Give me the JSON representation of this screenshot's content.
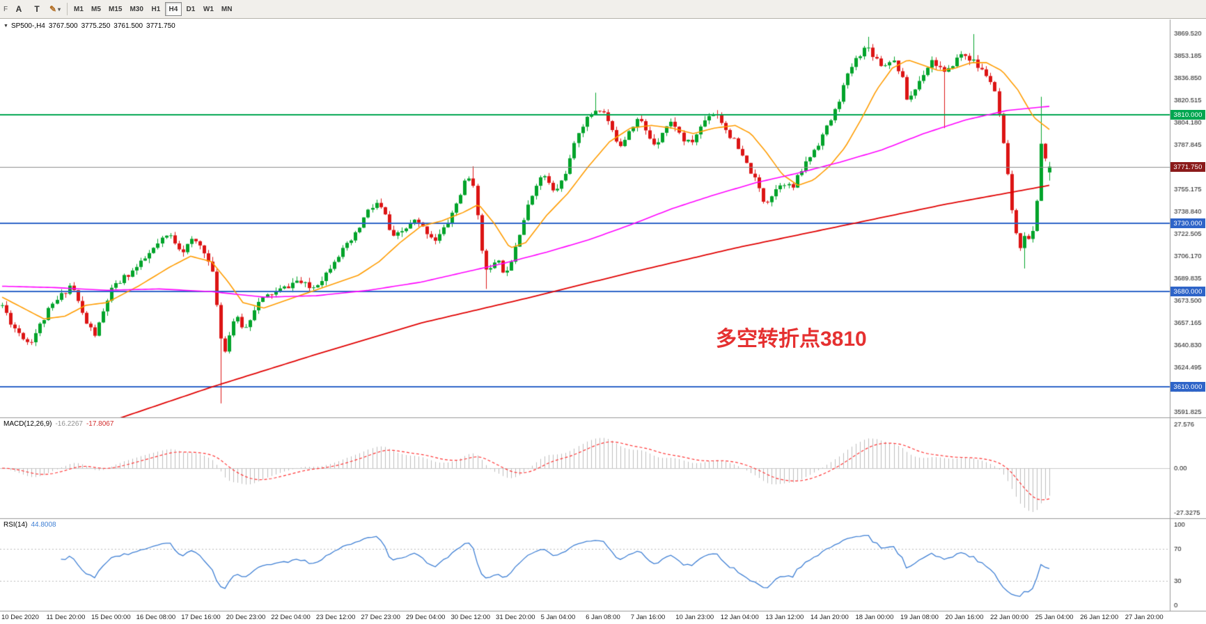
{
  "toolbar": {
    "handle_label": "F",
    "tools": [
      {
        "id": "text-tool",
        "label": "A",
        "has_dropdown": false
      },
      {
        "id": "label-tool",
        "label": "T",
        "has_dropdown": false
      },
      {
        "id": "draw-tool",
        "label": "✎",
        "has_dropdown": true
      }
    ],
    "timeframes": [
      {
        "label": "M1",
        "active": false
      },
      {
        "label": "M5",
        "active": false
      },
      {
        "label": "M15",
        "active": false
      },
      {
        "label": "M30",
        "active": false
      },
      {
        "label": "H1",
        "active": false
      },
      {
        "label": "H4",
        "active": true
      },
      {
        "label": "D1",
        "active": false
      },
      {
        "label": "W1",
        "active": false
      },
      {
        "label": "MN",
        "active": false
      }
    ]
  },
  "header": {
    "marker": "▼",
    "symbol": "SP500-,H4",
    "open": "3767.500",
    "high": "3775.250",
    "low": "3761.500",
    "close": "3771.750"
  },
  "annotation": {
    "text": "多空转折点3810"
  },
  "macd_panel": {
    "name": "MACD(12,26,9)",
    "value_main": "-16.2267",
    "value_signal": "-17.8067",
    "scale_top": "27.576",
    "scale_zero": "0.00",
    "scale_bottom": "-27.3275"
  },
  "rsi_panel": {
    "name": "RSI(14)",
    "value": "44.8008",
    "scale": [
      "100",
      "70",
      "30",
      "0"
    ]
  },
  "time_axis": {
    "labels": [
      "10 Dec 2020",
      "11 Dec 20:00",
      "15 Dec 00:00",
      "16 Dec 08:00",
      "17 Dec 16:00",
      "20 Dec 23:00",
      "22 Dec 04:00",
      "23 Dec 12:00",
      "27 Dec 23:00",
      "29 Dec 04:00",
      "30 Dec 12:00",
      "31 Dec 20:00",
      "5 Jan 04:00",
      "6 Jan 08:00",
      "7 Jan 16:00",
      "10 Jan 23:00",
      "12 Jan 04:00",
      "13 Jan 12:00",
      "14 Jan 20:00",
      "18 Jan 00:00",
      "19 Jan 08:00",
      "20 Jan 16:00",
      "22 Jan 00:00",
      "25 Jan 04:00",
      "26 Jan 12:00",
      "27 Jan 20:00"
    ]
  },
  "chart_data": {
    "type": "candlestick",
    "symbol": "SP500-",
    "timeframe": "H4",
    "last_candle": {
      "open": 3767.5,
      "high": 3775.25,
      "low": 3761.5,
      "close": 3771.75
    },
    "price_axis": {
      "ticks": [
        3869.52,
        3853.185,
        3836.85,
        3820.515,
        3804.18,
        3787.845,
        3771.51,
        3755.175,
        3738.84,
        3722.505,
        3706.17,
        3689.835,
        3673.5,
        3657.165,
        3640.83,
        3624.495,
        3608.16,
        3591.825
      ]
    },
    "candles": {
      "count": 250,
      "seed": 11,
      "noise": 5,
      "anchors": [
        [
          0.0,
          3670
        ],
        [
          0.01,
          3655
        ],
        [
          0.026,
          3642
        ],
        [
          0.046,
          3668
        ],
        [
          0.066,
          3686
        ],
        [
          0.079,
          3658
        ],
        [
          0.089,
          3648
        ],
        [
          0.103,
          3680
        ],
        [
          0.116,
          3690
        ],
        [
          0.132,
          3700
        ],
        [
          0.149,
          3715
        ],
        [
          0.159,
          3722
        ],
        [
          0.172,
          3710
        ],
        [
          0.182,
          3718
        ],
        [
          0.192,
          3712
        ],
        [
          0.202,
          3690
        ],
        [
          0.209,
          3645
        ],
        [
          0.213,
          3638
        ],
        [
          0.222,
          3662
        ],
        [
          0.232,
          3652
        ],
        [
          0.242,
          3670
        ],
        [
          0.255,
          3678
        ],
        [
          0.268,
          3682
        ],
        [
          0.281,
          3688
        ],
        [
          0.295,
          3682
        ],
        [
          0.308,
          3692
        ],
        [
          0.318,
          3705
        ],
        [
          0.328,
          3712
        ],
        [
          0.338,
          3722
        ],
        [
          0.348,
          3738
        ],
        [
          0.358,
          3745
        ],
        [
          0.366,
          3735
        ],
        [
          0.372,
          3718
        ],
        [
          0.383,
          3725
        ],
        [
          0.394,
          3732
        ],
        [
          0.404,
          3725
        ],
        [
          0.414,
          3718
        ],
        [
          0.424,
          3728
        ],
        [
          0.434,
          3745
        ],
        [
          0.442,
          3760
        ],
        [
          0.449,
          3765
        ],
        [
          0.456,
          3720
        ],
        [
          0.46,
          3700
        ],
        [
          0.467,
          3695
        ],
        [
          0.474,
          3705
        ],
        [
          0.478,
          3692
        ],
        [
          0.485,
          3702
        ],
        [
          0.493,
          3722
        ],
        [
          0.502,
          3742
        ],
        [
          0.51,
          3760
        ],
        [
          0.518,
          3765
        ],
        [
          0.527,
          3752
        ],
        [
          0.535,
          3762
        ],
        [
          0.543,
          3778
        ],
        [
          0.551,
          3800
        ],
        [
          0.56,
          3808
        ],
        [
          0.568,
          3815
        ],
        [
          0.576,
          3810
        ],
        [
          0.583,
          3795
        ],
        [
          0.591,
          3788
        ],
        [
          0.599,
          3800
        ],
        [
          0.608,
          3808
        ],
        [
          0.616,
          3795
        ],
        [
          0.624,
          3788
        ],
        [
          0.632,
          3800
        ],
        [
          0.641,
          3805
        ],
        [
          0.649,
          3792
        ],
        [
          0.657,
          3788
        ],
        [
          0.666,
          3800
        ],
        [
          0.674,
          3810
        ],
        [
          0.682,
          3812
        ],
        [
          0.69,
          3800
        ],
        [
          0.699,
          3790
        ],
        [
          0.707,
          3778
        ],
        [
          0.715,
          3768
        ],
        [
          0.723,
          3755
        ],
        [
          0.728,
          3745
        ],
        [
          0.736,
          3752
        ],
        [
          0.745,
          3762
        ],
        [
          0.754,
          3755
        ],
        [
          0.762,
          3768
        ],
        [
          0.77,
          3778
        ],
        [
          0.778,
          3788
        ],
        [
          0.787,
          3800
        ],
        [
          0.795,
          3812
        ],
        [
          0.803,
          3830
        ],
        [
          0.811,
          3845
        ],
        [
          0.82,
          3856
        ],
        [
          0.826,
          3860
        ],
        [
          0.834,
          3852
        ],
        [
          0.842,
          3845
        ],
        [
          0.849,
          3852
        ],
        [
          0.858,
          3840
        ],
        [
          0.864,
          3820
        ],
        [
          0.871,
          3828
        ],
        [
          0.879,
          3840
        ],
        [
          0.887,
          3850
        ],
        [
          0.895,
          3845
        ],
        [
          0.901,
          3838
        ],
        [
          0.908,
          3848
        ],
        [
          0.917,
          3855
        ],
        [
          0.926,
          3850
        ],
        [
          0.934,
          3843
        ],
        [
          0.942,
          3838
        ],
        [
          0.95,
          3820
        ],
        [
          0.957,
          3780
        ],
        [
          0.964,
          3740
        ],
        [
          0.97,
          3710
        ],
        [
          0.977,
          3725
        ],
        [
          0.982,
          3712
        ],
        [
          0.988,
          3748
        ],
        [
          0.993,
          3800
        ],
        [
          0.997,
          3770
        ],
        [
          1.0,
          3772
        ]
      ],
      "wicks": [
        {
          "t": 0.21,
          "price": 3598,
          "side": "low"
        },
        {
          "t": 0.449,
          "price": 3772,
          "side": "high"
        },
        {
          "t": 0.46,
          "price": 3682,
          "side": "low"
        },
        {
          "t": 0.568,
          "price": 3826,
          "side": "high"
        },
        {
          "t": 0.826,
          "price": 3867,
          "side": "high"
        },
        {
          "t": 0.901,
          "price": 3800,
          "side": "low"
        },
        {
          "t": 0.926,
          "price": 3869,
          "side": "high"
        },
        {
          "t": 0.975,
          "price": 3697,
          "side": "low"
        },
        {
          "t": 0.993,
          "price": 3823,
          "side": "high"
        }
      ]
    },
    "moving_averages": [
      {
        "name": "ma-fast",
        "color": "#FF9C00",
        "width": 1.6,
        "anchors": [
          [
            0,
            3676
          ],
          [
            0.02,
            3668
          ],
          [
            0.04,
            3660
          ],
          [
            0.06,
            3662
          ],
          [
            0.08,
            3670
          ],
          [
            0.1,
            3672
          ],
          [
            0.13,
            3684
          ],
          [
            0.16,
            3698
          ],
          [
            0.18,
            3706
          ],
          [
            0.2,
            3702
          ],
          [
            0.215,
            3688
          ],
          [
            0.23,
            3672
          ],
          [
            0.25,
            3668
          ],
          [
            0.28,
            3676
          ],
          [
            0.31,
            3684
          ],
          [
            0.34,
            3692
          ],
          [
            0.36,
            3702
          ],
          [
            0.38,
            3716
          ],
          [
            0.4,
            3728
          ],
          [
            0.42,
            3732
          ],
          [
            0.44,
            3738
          ],
          [
            0.455,
            3744
          ],
          [
            0.47,
            3730
          ],
          [
            0.485,
            3712
          ],
          [
            0.5,
            3716
          ],
          [
            0.52,
            3736
          ],
          [
            0.54,
            3752
          ],
          [
            0.56,
            3772
          ],
          [
            0.58,
            3790
          ],
          [
            0.6,
            3800
          ],
          [
            0.62,
            3802
          ],
          [
            0.64,
            3800
          ],
          [
            0.66,
            3796
          ],
          [
            0.68,
            3800
          ],
          [
            0.7,
            3802
          ],
          [
            0.715,
            3796
          ],
          [
            0.73,
            3782
          ],
          [
            0.745,
            3766
          ],
          [
            0.76,
            3758
          ],
          [
            0.775,
            3762
          ],
          [
            0.79,
            3772
          ],
          [
            0.805,
            3786
          ],
          [
            0.82,
            3806
          ],
          [
            0.835,
            3828
          ],
          [
            0.85,
            3844
          ],
          [
            0.865,
            3850
          ],
          [
            0.88,
            3846
          ],
          [
            0.895,
            3842
          ],
          [
            0.91,
            3844
          ],
          [
            0.925,
            3848
          ],
          [
            0.94,
            3848
          ],
          [
            0.955,
            3842
          ],
          [
            0.97,
            3828
          ],
          [
            0.985,
            3808
          ],
          [
            1,
            3799
          ]
        ]
      },
      {
        "name": "ma-mid",
        "color": "#FF00FF",
        "width": 1.6,
        "anchors": [
          [
            0,
            3684
          ],
          [
            0.05,
            3683
          ],
          [
            0.1,
            3681
          ],
          [
            0.15,
            3682
          ],
          [
            0.2,
            3680
          ],
          [
            0.25,
            3676
          ],
          [
            0.3,
            3677
          ],
          [
            0.35,
            3681
          ],
          [
            0.4,
            3687
          ],
          [
            0.44,
            3694
          ],
          [
            0.48,
            3701
          ],
          [
            0.52,
            3709
          ],
          [
            0.56,
            3718
          ],
          [
            0.6,
            3729
          ],
          [
            0.64,
            3741
          ],
          [
            0.68,
            3751
          ],
          [
            0.72,
            3760
          ],
          [
            0.76,
            3767
          ],
          [
            0.8,
            3775
          ],
          [
            0.84,
            3784
          ],
          [
            0.88,
            3796
          ],
          [
            0.92,
            3806
          ],
          [
            0.96,
            3813
          ],
          [
            1,
            3816
          ]
        ]
      },
      {
        "name": "ma-slow",
        "color": "#E00000",
        "width": 1.8,
        "anchors": [
          [
            0,
            3560
          ],
          [
            0.1,
            3584
          ],
          [
            0.2,
            3610
          ],
          [
            0.3,
            3634
          ],
          [
            0.4,
            3657
          ],
          [
            0.5,
            3675
          ],
          [
            0.6,
            3694
          ],
          [
            0.7,
            3712
          ],
          [
            0.8,
            3728
          ],
          [
            0.9,
            3744
          ],
          [
            1,
            3758
          ]
        ]
      }
    ],
    "hlines": [
      {
        "price": 3810,
        "label": "3810.000",
        "color": "#00A650",
        "width": 2
      },
      {
        "price": 3730,
        "label": "3730.000",
        "color": "#2E64C8",
        "width": 2
      },
      {
        "price": 3680,
        "label": "3680.000",
        "color": "#2E64C8",
        "width": 2
      },
      {
        "price": 3610,
        "label": "3610.000",
        "color": "#2E64C8",
        "width": 2
      }
    ],
    "current_price": {
      "value": 3771.75,
      "label": "3771.750",
      "line_color": "#8c8c8c",
      "box_color": "#8B1A1A"
    },
    "macd": {
      "fast": 12,
      "slow": 26,
      "signal": 9
    },
    "rsi": {
      "period": 14,
      "levels": [
        70,
        30
      ],
      "value": 44.8008
    },
    "colors": {
      "up": "#00A32A",
      "down": "#DC1414",
      "background": "#FFFFFF",
      "macd_histogram": "#BDBDBD",
      "macd_signal": "#FF3232",
      "rsi_line": "#3E7FD4",
      "separator": "#999999",
      "scale_text": "#111111"
    }
  }
}
